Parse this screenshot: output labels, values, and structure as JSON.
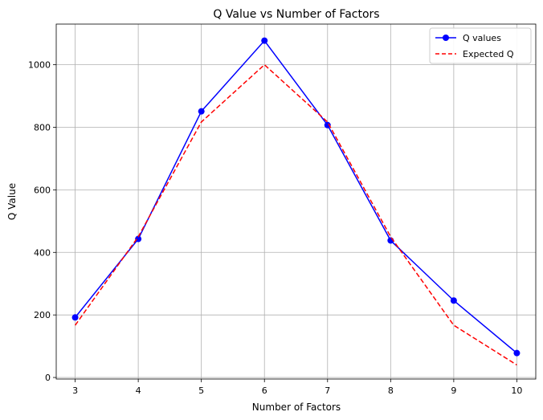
{
  "chart_data": {
    "type": "line",
    "title": "Q Value vs Number of Factors",
    "xlabel": "Number of Factors",
    "ylabel": "Q Value",
    "x": [
      3,
      4,
      5,
      6,
      7,
      8,
      9,
      10
    ],
    "xlim": [
      2.7,
      10.3
    ],
    "ylim": [
      -5,
      1130
    ],
    "xticks": [
      3,
      4,
      5,
      6,
      7,
      8,
      9,
      10
    ],
    "yticks": [
      0,
      200,
      400,
      600,
      800,
      1000
    ],
    "grid": true,
    "legend_position": "upper-right",
    "series": [
      {
        "name": "Q values",
        "values": [
          192,
          443,
          851,
          1077,
          807,
          438,
          246,
          78
        ],
        "color": "#0000ff",
        "style": "solid",
        "marker": "circle"
      },
      {
        "name": "Expected Q",
        "values": [
          167,
          450,
          817,
          1000,
          817,
          450,
          167,
          40
        ],
        "color": "#ff0000",
        "style": "dashed",
        "marker": "none"
      }
    ]
  }
}
